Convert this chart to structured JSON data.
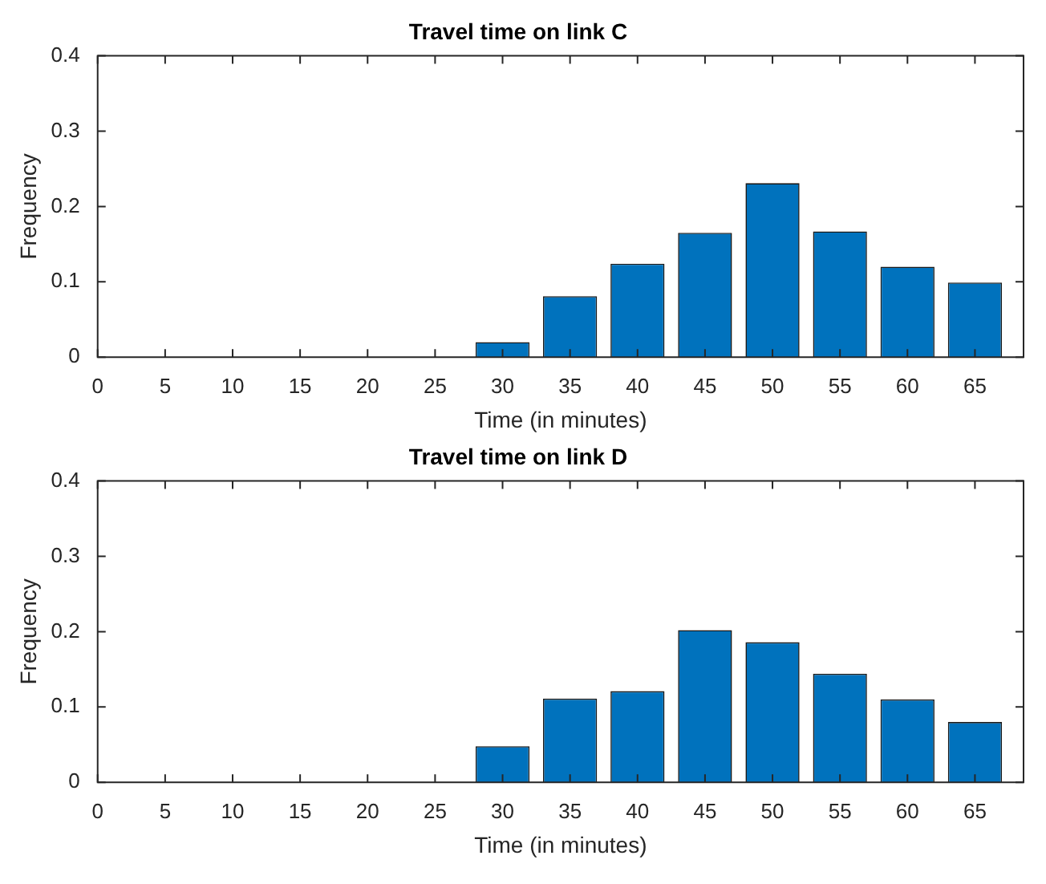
{
  "chart_data": [
    {
      "type": "bar",
      "title": "Travel time on link C",
      "xlabel": "Time (in minutes)",
      "ylabel": "Frequency",
      "x": [
        30,
        35,
        40,
        45,
        50,
        55,
        60,
        65
      ],
      "values": [
        0.02,
        0.081,
        0.124,
        0.165,
        0.231,
        0.167,
        0.12,
        0.099
      ],
      "color": "#0072bd",
      "xlim": [
        0,
        68.6
      ],
      "xticks": [
        0,
        5,
        10,
        15,
        20,
        25,
        30,
        35,
        40,
        45,
        50,
        55,
        60,
        65
      ],
      "ylim": [
        0,
        0.4
      ],
      "yticks": [
        0,
        0.1,
        0.2,
        0.3,
        0.4
      ]
    },
    {
      "type": "bar",
      "title": "Travel time on link D",
      "xlabel": "Time (in minutes)",
      "ylabel": "Frequency",
      "x": [
        30,
        35,
        40,
        45,
        50,
        55,
        60,
        65
      ],
      "values": [
        0.048,
        0.111,
        0.121,
        0.202,
        0.186,
        0.144,
        0.11,
        0.08
      ],
      "color": "#0072bd",
      "xlim": [
        0,
        68.6
      ],
      "xticks": [
        0,
        5,
        10,
        15,
        20,
        25,
        30,
        35,
        40,
        45,
        50,
        55,
        60,
        65
      ],
      "ylim": [
        0,
        0.4
      ],
      "yticks": [
        0,
        0.1,
        0.2,
        0.3,
        0.4
      ]
    }
  ]
}
